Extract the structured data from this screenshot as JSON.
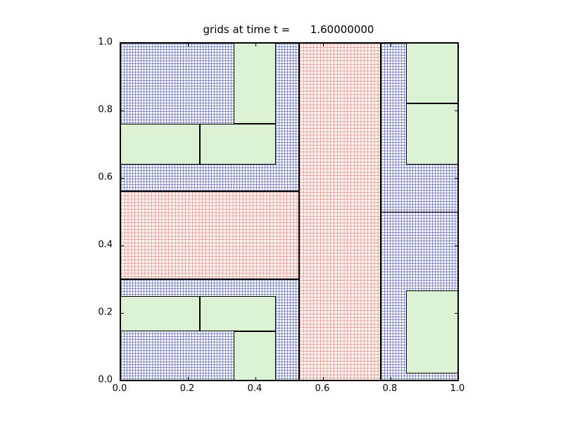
{
  "title": "grids at time t =      1.60000000",
  "axes": {
    "x_ticks": [
      "0.0",
      "0.2",
      "0.4",
      "0.6",
      "0.8",
      "1.0"
    ],
    "y_ticks": [
      "0.0",
      "0.2",
      "0.4",
      "0.6",
      "0.8",
      "1.0"
    ],
    "x_range": [
      0.0,
      1.0
    ],
    "y_range": [
      0.0,
      1.0
    ]
  },
  "colors": {
    "figure_background": "#ffffff",
    "axis_frame": "#000000",
    "patch_border": "#000000",
    "level1_fill": "#dbf2d4",
    "level2_fill": "#f7f8fd",
    "level2_grid_line": "#3c4b96",
    "level3_fill": "#fdf2f0",
    "level3_grid_line": "#cd6a60"
  },
  "chart_data": {
    "type": "heatmap",
    "description": "Adaptive mesh refinement (AMR) grid patches at time t = 1.6. Level 1 = coarse grids (plain green fill), level 2 = refined grids (blue fine mesh), level 3 = finest grids (pink fine mesh). Patch rectangles given in axis units; y measured from bottom axis.",
    "title": "grids at time t =      1.60000000",
    "xlim": [
      0,
      1
    ],
    "ylim": [
      0,
      1
    ],
    "levels": [
      {
        "level": 2,
        "patches": [
          {
            "x": 0.0,
            "y": 0.56,
            "w": 0.53,
            "h": 0.44
          },
          {
            "x": 0.0,
            "y": 0.0,
            "w": 0.53,
            "h": 0.3
          },
          {
            "x": 0.77,
            "y": 0.0,
            "w": 0.23,
            "h": 1.0
          }
        ]
      },
      {
        "level": 3,
        "patches": [
          {
            "x": 0.53,
            "y": 0.0,
            "w": 0.24,
            "h": 1.0
          },
          {
            "x": 0.0,
            "y": 0.3,
            "w": 0.53,
            "h": 0.26
          }
        ]
      },
      {
        "level": 1,
        "patches": [
          {
            "x": 0.335,
            "y": 0.76,
            "w": 0.125,
            "h": 0.24
          },
          {
            "x": 0.0,
            "y": 0.64,
            "w": 0.235,
            "h": 0.12
          },
          {
            "x": 0.235,
            "y": 0.64,
            "w": 0.225,
            "h": 0.12
          },
          {
            "x": 0.0,
            "y": 0.145,
            "w": 0.235,
            "h": 0.105
          },
          {
            "x": 0.235,
            "y": 0.145,
            "w": 0.225,
            "h": 0.105
          },
          {
            "x": 0.335,
            "y": 0.0,
            "w": 0.125,
            "h": 0.145
          },
          {
            "x": 0.845,
            "y": 0.82,
            "w": 0.155,
            "h": 0.18
          },
          {
            "x": 0.845,
            "y": 0.64,
            "w": 0.155,
            "h": 0.18
          },
          {
            "x": 0.845,
            "y": 0.02,
            "w": 0.155,
            "h": 0.247
          }
        ]
      }
    ],
    "boundary_lines": [
      {
        "x1": 0.77,
        "y1": 0.5,
        "x2": 1.0,
        "y2": 0.5
      }
    ],
    "mesh_spacing_px": {
      "level2": 4,
      "level3": 4.8
    },
    "legend_position": "none",
    "grid": "per-patch fine mesh"
  }
}
